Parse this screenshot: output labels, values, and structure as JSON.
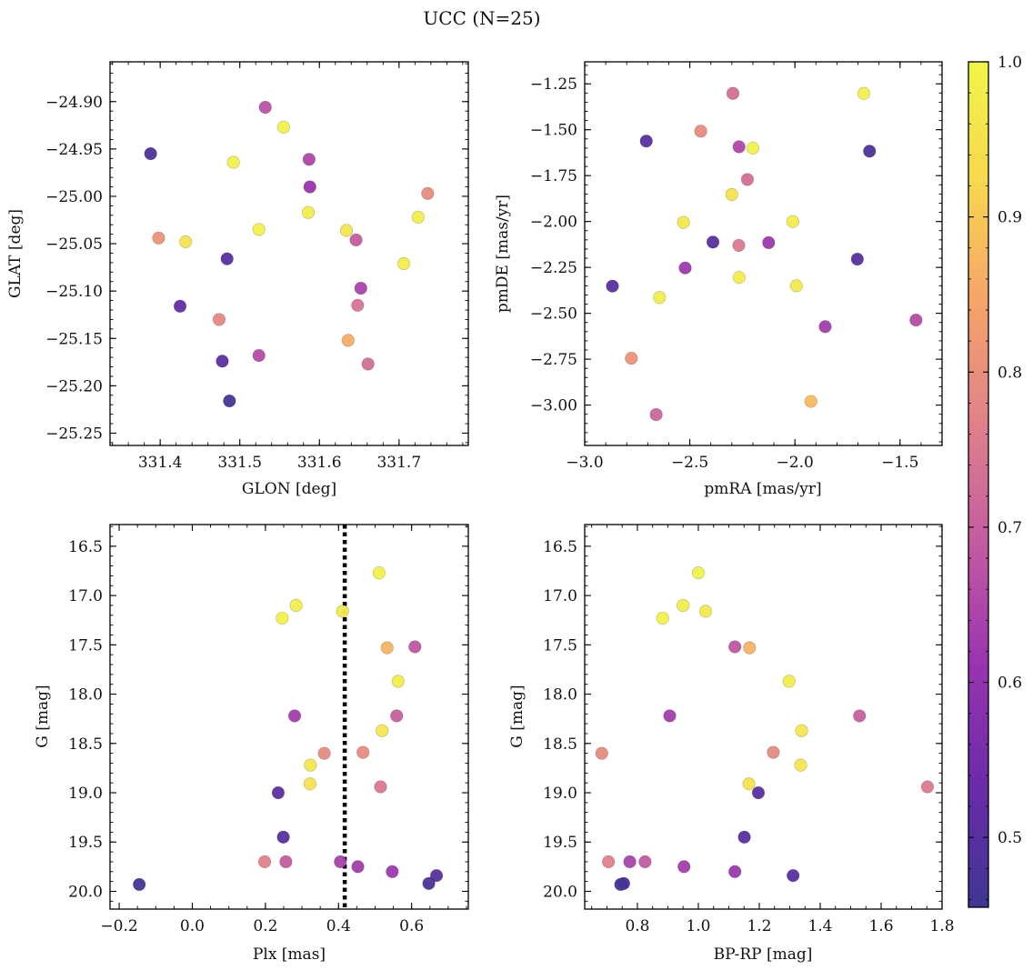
{
  "figure": {
    "title": "UCC (N=25)"
  },
  "colorbar": {
    "range": [
      0.455,
      1.0
    ],
    "ticks": [
      0.5,
      0.6,
      0.7,
      0.8,
      0.9,
      1.0
    ],
    "tick_labels": [
      "0.5",
      "0.6",
      "0.7",
      "0.8",
      "0.9",
      "1.0"
    ],
    "minor_step": 0.02,
    "colormap": [
      "#3f3693",
      "#6a2ba9",
      "#9933b0",
      "#c45aa1",
      "#e1808a",
      "#f6a36a",
      "#f8d74e",
      "#f0f54a"
    ]
  },
  "marker_edge_color": "#888888",
  "chart_data": [
    {
      "type": "scatter",
      "xlabel": "GLON [deg]",
      "ylabel": "GLAT [deg]",
      "xlim": [
        331.337,
        331.787
      ],
      "ylim": [
        -25.263,
        -24.858
      ],
      "y_inverted": false,
      "xticks": [
        331.4,
        331.5,
        331.6,
        331.7
      ],
      "xtick_labels": [
        "331.4",
        "331.5",
        "331.6",
        "331.7"
      ],
      "xminor": 0.02,
      "yticks": [
        -24.9,
        -24.95,
        -25.0,
        -25.05,
        -25.1,
        -25.15,
        -25.2,
        -25.25
      ],
      "ytick_labels": [
        "−24.90",
        "−24.95",
        "−25.00",
        "−25.05",
        "−25.10",
        "−25.15",
        "−25.20",
        "−25.25"
      ],
      "yminor": 0.01,
      "points": [
        {
          "x": 331.388,
          "y": -24.955,
          "c": 0.48
        },
        {
          "x": 331.532,
          "y": -24.906,
          "c": 0.67
        },
        {
          "x": 331.555,
          "y": -24.927,
          "c": 0.99
        },
        {
          "x": 331.492,
          "y": -24.964,
          "c": 0.99
        },
        {
          "x": 331.587,
          "y": -24.961,
          "c": 0.65
        },
        {
          "x": 331.588,
          "y": -24.99,
          "c": 0.61
        },
        {
          "x": 331.736,
          "y": -24.997,
          "c": 0.79
        },
        {
          "x": 331.724,
          "y": -25.022,
          "c": 0.98
        },
        {
          "x": 331.586,
          "y": -25.017,
          "c": 0.98
        },
        {
          "x": 331.634,
          "y": -25.036,
          "c": 0.96
        },
        {
          "x": 331.524,
          "y": -25.035,
          "c": 0.99
        },
        {
          "x": 331.398,
          "y": -25.044,
          "c": 0.81
        },
        {
          "x": 331.432,
          "y": -25.048,
          "c": 0.95
        },
        {
          "x": 331.646,
          "y": -25.046,
          "c": 0.69
        },
        {
          "x": 331.484,
          "y": -25.066,
          "c": 0.5
        },
        {
          "x": 331.706,
          "y": -25.071,
          "c": 0.98
        },
        {
          "x": 331.652,
          "y": -25.097,
          "c": 0.64
        },
        {
          "x": 331.648,
          "y": -25.115,
          "c": 0.74
        },
        {
          "x": 331.425,
          "y": -25.116,
          "c": 0.52
        },
        {
          "x": 331.474,
          "y": -25.13,
          "c": 0.78
        },
        {
          "x": 331.636,
          "y": -25.152,
          "c": 0.86
        },
        {
          "x": 331.524,
          "y": -25.168,
          "c": 0.66
        },
        {
          "x": 331.478,
          "y": -25.174,
          "c": 0.51
        },
        {
          "x": 331.661,
          "y": -25.177,
          "c": 0.73
        },
        {
          "x": 331.487,
          "y": -25.216,
          "c": 0.47
        }
      ]
    },
    {
      "type": "scatter",
      "xlabel": "pmRA [mas/yr]",
      "ylabel": "pmDE [mas/yr]",
      "xlim": [
        -3.0,
        -1.3
      ],
      "ylim": [
        -3.22,
        -1.13
      ],
      "y_inverted": false,
      "xticks": [
        -3.0,
        -2.5,
        -2.0,
        -1.5
      ],
      "xtick_labels": [
        "−3.0",
        "−2.5",
        "−2.0",
        "−1.5"
      ],
      "xminor": 0.1,
      "yticks": [
        -1.25,
        -1.5,
        -1.75,
        -2.0,
        -2.25,
        -2.5,
        -2.75,
        -3.0
      ],
      "ytick_labels": [
        "−1.25",
        "−1.50",
        "−1.75",
        "−2.00",
        "−2.25",
        "−2.50",
        "−2.75",
        "−3.00"
      ],
      "yminor": 0.05,
      "points": [
        {
          "x": -2.295,
          "y": -1.302,
          "c": 0.73
        },
        {
          "x": -1.672,
          "y": -1.302,
          "c": 0.99
        },
        {
          "x": -2.707,
          "y": -1.562,
          "c": 0.5
        },
        {
          "x": -2.448,
          "y": -1.508,
          "c": 0.79
        },
        {
          "x": -2.266,
          "y": -1.593,
          "c": 0.65
        },
        {
          "x": -2.2,
          "y": -1.6,
          "c": 0.99
        },
        {
          "x": -1.645,
          "y": -1.617,
          "c": 0.48
        },
        {
          "x": -2.226,
          "y": -1.771,
          "c": 0.73
        },
        {
          "x": -2.3,
          "y": -1.853,
          "c": 0.95
        },
        {
          "x": -2.53,
          "y": -2.005,
          "c": 0.97
        },
        {
          "x": -2.01,
          "y": -2.0,
          "c": 0.98
        },
        {
          "x": -2.39,
          "y": -2.112,
          "c": 0.5
        },
        {
          "x": -2.267,
          "y": -2.13,
          "c": 0.75
        },
        {
          "x": -2.125,
          "y": -2.115,
          "c": 0.62
        },
        {
          "x": -1.703,
          "y": -2.205,
          "c": 0.5
        },
        {
          "x": -2.522,
          "y": -2.253,
          "c": 0.62
        },
        {
          "x": -2.265,
          "y": -2.305,
          "c": 0.98
        },
        {
          "x": -2.868,
          "y": -2.352,
          "c": 0.5
        },
        {
          "x": -1.993,
          "y": -2.35,
          "c": 0.97
        },
        {
          "x": -2.644,
          "y": -2.414,
          "c": 0.98
        },
        {
          "x": -1.424,
          "y": -2.537,
          "c": 0.66
        },
        {
          "x": -1.856,
          "y": -2.573,
          "c": 0.63
        },
        {
          "x": -2.778,
          "y": -2.745,
          "c": 0.81
        },
        {
          "x": -1.924,
          "y": -2.98,
          "c": 0.88
        },
        {
          "x": -2.66,
          "y": -3.052,
          "c": 0.71
        }
      ]
    },
    {
      "type": "scatter",
      "xlabel": "Plx [mas]",
      "ylabel": "G [mag]",
      "xlim": [
        -0.225,
        0.755
      ],
      "ylim": [
        16.28,
        20.18
      ],
      "y_inverted": true,
      "xticks": [
        -0.2,
        0.0,
        0.2,
        0.4,
        0.6
      ],
      "xtick_labels": [
        "−0.2",
        "0.0",
        "0.2",
        "0.4",
        "0.6"
      ],
      "xminor": 0.05,
      "yticks": [
        16.5,
        17.0,
        17.5,
        18.0,
        18.5,
        19.0,
        19.5,
        20.0
      ],
      "ytick_labels": [
        "16.5",
        "17.0",
        "17.5",
        "18.0",
        "18.5",
        "19.0",
        "19.5",
        "20.0"
      ],
      "yminor": 0.1,
      "vline": 0.417,
      "points": [
        {
          "x": 0.511,
          "y": 16.77,
          "c": 0.99
        },
        {
          "x": 0.284,
          "y": 17.1,
          "c": 0.98
        },
        {
          "x": 0.246,
          "y": 17.23,
          "c": 0.99
        },
        {
          "x": 0.411,
          "y": 17.16,
          "c": 0.97
        },
        {
          "x": 0.533,
          "y": 17.53,
          "c": 0.87
        },
        {
          "x": 0.609,
          "y": 17.52,
          "c": 0.68
        },
        {
          "x": 0.563,
          "y": 17.87,
          "c": 0.98
        },
        {
          "x": 0.28,
          "y": 18.22,
          "c": 0.63
        },
        {
          "x": 0.559,
          "y": 18.22,
          "c": 0.7
        },
        {
          "x": 0.519,
          "y": 18.37,
          "c": 0.96
        },
        {
          "x": 0.361,
          "y": 18.6,
          "c": 0.79
        },
        {
          "x": 0.467,
          "y": 18.59,
          "c": 0.79
        },
        {
          "x": 0.323,
          "y": 18.72,
          "c": 0.96
        },
        {
          "x": 0.322,
          "y": 18.91,
          "c": 0.95
        },
        {
          "x": 0.515,
          "y": 18.94,
          "c": 0.75
        },
        {
          "x": 0.235,
          "y": 19.0,
          "c": 0.5
        },
        {
          "x": 0.249,
          "y": 19.45,
          "c": 0.5
        },
        {
          "x": 0.198,
          "y": 19.7,
          "c": 0.77
        },
        {
          "x": 0.256,
          "y": 19.7,
          "c": 0.69
        },
        {
          "x": 0.405,
          "y": 19.7,
          "c": 0.64
        },
        {
          "x": 0.453,
          "y": 19.75,
          "c": 0.63
        },
        {
          "x": 0.547,
          "y": 19.8,
          "c": 0.62
        },
        {
          "x": 0.668,
          "y": 19.84,
          "c": 0.5
        },
        {
          "x": 0.647,
          "y": 19.92,
          "c": 0.48
        },
        {
          "x": -0.145,
          "y": 19.93,
          "c": 0.47
        }
      ]
    },
    {
      "type": "scatter",
      "xlabel": "BP-RP [mag]",
      "ylabel": "G [mag]",
      "xlim": [
        0.627,
        1.8
      ],
      "ylim": [
        16.28,
        20.18
      ],
      "y_inverted": true,
      "xticks": [
        0.8,
        1.0,
        1.2,
        1.4,
        1.6,
        1.8
      ],
      "xtick_labels": [
        "0.8",
        "1.0",
        "1.2",
        "1.4",
        "1.6",
        "1.8"
      ],
      "xminor": 0.05,
      "yticks": [
        16.5,
        17.0,
        17.5,
        18.0,
        18.5,
        19.0,
        19.5,
        20.0
      ],
      "ytick_labels": [
        "16.5",
        "17.0",
        "17.5",
        "18.0",
        "18.5",
        "19.0",
        "19.5",
        "20.0"
      ],
      "yminor": 0.1,
      "points": [
        {
          "x": 1.0,
          "y": 16.77,
          "c": 0.99
        },
        {
          "x": 0.95,
          "y": 17.1,
          "c": 0.98
        },
        {
          "x": 0.883,
          "y": 17.23,
          "c": 0.99
        },
        {
          "x": 1.024,
          "y": 17.16,
          "c": 0.97
        },
        {
          "x": 1.12,
          "y": 17.52,
          "c": 0.68
        },
        {
          "x": 1.168,
          "y": 17.53,
          "c": 0.87
        },
        {
          "x": 1.298,
          "y": 17.87,
          "c": 0.98
        },
        {
          "x": 0.906,
          "y": 18.22,
          "c": 0.63
        },
        {
          "x": 1.529,
          "y": 18.22,
          "c": 0.7
        },
        {
          "x": 1.339,
          "y": 18.37,
          "c": 0.96
        },
        {
          "x": 0.683,
          "y": 18.6,
          "c": 0.79
        },
        {
          "x": 1.246,
          "y": 18.59,
          "c": 0.79
        },
        {
          "x": 1.336,
          "y": 18.72,
          "c": 0.96
        },
        {
          "x": 1.166,
          "y": 18.91,
          "c": 0.95
        },
        {
          "x": 1.752,
          "y": 18.94,
          "c": 0.75
        },
        {
          "x": 1.197,
          "y": 19.0,
          "c": 0.5
        },
        {
          "x": 1.151,
          "y": 19.45,
          "c": 0.5
        },
        {
          "x": 0.705,
          "y": 19.7,
          "c": 0.77
        },
        {
          "x": 0.775,
          "y": 19.7,
          "c": 0.64
        },
        {
          "x": 0.825,
          "y": 19.7,
          "c": 0.69
        },
        {
          "x": 0.953,
          "y": 19.75,
          "c": 0.63
        },
        {
          "x": 1.12,
          "y": 19.8,
          "c": 0.62
        },
        {
          "x": 1.311,
          "y": 19.84,
          "c": 0.5
        },
        {
          "x": 0.755,
          "y": 19.92,
          "c": 0.48
        },
        {
          "x": 0.745,
          "y": 19.93,
          "c": 0.47
        }
      ]
    }
  ]
}
